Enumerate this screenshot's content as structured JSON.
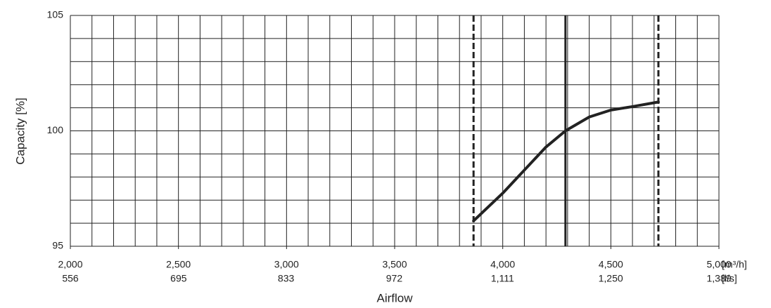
{
  "chart_data": {
    "type": "line",
    "xlabel": "Airflow",
    "ylabel": "Capacity [%]",
    "x_unit": "[m³/h]",
    "x2_unit": "[l/s]",
    "xlim": [
      2000,
      5000
    ],
    "ylim": [
      95,
      105
    ],
    "xticks": [
      {
        "value": 2000,
        "label": "2,000"
      },
      {
        "value": 2500,
        "label": "2,500"
      },
      {
        "value": 3000,
        "label": "3,000"
      },
      {
        "value": 3500,
        "label": "3,500"
      },
      {
        "value": 4000,
        "label": "4,000"
      },
      {
        "value": 4500,
        "label": "4,500"
      },
      {
        "value": 5000,
        "label": "5,000"
      }
    ],
    "x2lim": [
      556,
      1389
    ],
    "x2ticks": [
      556,
      695,
      833,
      972,
      {
        "value": 1111,
        "label": "1,111"
      },
      {
        "value": 1250,
        "label": "1,250"
      },
      {
        "value": 1389,
        "label": "1,389"
      }
    ],
    "yticks": [
      95,
      100,
      105
    ],
    "xgrid_step": 100,
    "ygrid_step": 1,
    "grid": true,
    "vlines": [
      {
        "x": 3865,
        "style": "dashed"
      },
      {
        "x": 4290,
        "style": "solid"
      },
      {
        "x": 4720,
        "style": "dashed"
      }
    ],
    "series": [
      {
        "color": "#222222",
        "x": [
          3865,
          4000,
          4100,
          4200,
          4290,
          4400,
          4500,
          4600,
          4720
        ],
        "values": [
          96.1,
          97.3,
          98.3,
          99.3,
          100,
          100.6,
          100.9,
          101.05,
          101.25
        ]
      }
    ]
  }
}
